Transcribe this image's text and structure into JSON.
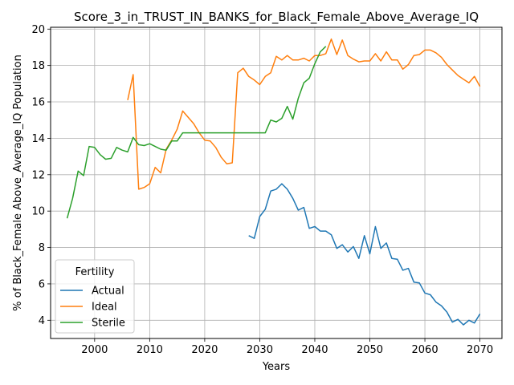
{
  "chart_data": {
    "type": "line",
    "title": "Score_3_in_TRUST_IN_BANKS_for_Black_Female_Above_Average_IQ",
    "xlabel": "Years",
    "ylabel": "% of Black_Female Above_Average_IQ Population",
    "xlim": [
      1992,
      2074
    ],
    "ylim": [
      3.0,
      20.1
    ],
    "xticks": [
      2000,
      2010,
      2020,
      2030,
      2040,
      2050,
      2060,
      2070
    ],
    "yticks": [
      4,
      6,
      8,
      10,
      12,
      14,
      16,
      18,
      20
    ],
    "grid": true,
    "legend": {
      "title": "Fertility",
      "placement": "lower-left"
    },
    "series": [
      {
        "name": "Actual",
        "color": "#1f77b4",
        "x": [
          2028,
          2029,
          2030,
          2031,
          2032,
          2033,
          2034,
          2035,
          2036,
          2037,
          2038,
          2039,
          2040,
          2041,
          2042,
          2043,
          2044,
          2045,
          2046,
          2047,
          2048,
          2049,
          2050,
          2051,
          2052,
          2053,
          2054,
          2055,
          2056,
          2057,
          2058,
          2059,
          2060,
          2061,
          2062,
          2063,
          2064,
          2065,
          2066,
          2067,
          2068,
          2069,
          2070
        ],
        "y": [
          8.65,
          8.5,
          9.7,
          10.1,
          11.1,
          11.2,
          11.5,
          11.2,
          10.7,
          10.05,
          10.2,
          9.05,
          9.15,
          8.9,
          8.9,
          8.7,
          7.95,
          8.15,
          7.75,
          8.05,
          7.4,
          8.65,
          7.65,
          9.15,
          7.95,
          8.25,
          7.4,
          7.35,
          6.75,
          6.85,
          6.1,
          6.05,
          5.5,
          5.4,
          5.0,
          4.8,
          4.45,
          3.9,
          4.05,
          3.75,
          4.0,
          3.85,
          4.35
        ]
      },
      {
        "name": "Ideal",
        "color": "#ff7f0e",
        "x": [
          2006,
          2007,
          2008,
          2009,
          2010,
          2011,
          2012,
          2013,
          2014,
          2015,
          2016,
          2017,
          2018,
          2019,
          2020,
          2021,
          2022,
          2023,
          2024,
          2025,
          2026,
          2027,
          2028,
          2029,
          2030,
          2031,
          2032,
          2033,
          2034,
          2035,
          2036,
          2037,
          2038,
          2039,
          2040,
          2041,
          2042,
          2043,
          2044,
          2045,
          2046,
          2047,
          2048,
          2049,
          2050,
          2051,
          2052,
          2053,
          2054,
          2055,
          2056,
          2057,
          2058,
          2059,
          2060,
          2061,
          2062,
          2063,
          2064,
          2065,
          2066,
          2067,
          2068,
          2069,
          2070
        ],
        "y": [
          16.1,
          17.5,
          11.2,
          11.3,
          11.5,
          12.4,
          12.1,
          13.4,
          13.9,
          14.5,
          15.5,
          15.15,
          14.8,
          14.3,
          13.9,
          13.85,
          13.5,
          12.95,
          12.6,
          12.65,
          17.6,
          17.85,
          17.4,
          17.2,
          16.95,
          17.4,
          17.6,
          18.5,
          18.3,
          18.55,
          18.3,
          18.3,
          18.4,
          18.25,
          18.55,
          18.55,
          18.65,
          19.45,
          18.6,
          19.4,
          18.55,
          18.35,
          18.2,
          18.25,
          18.25,
          18.65,
          18.25,
          18.75,
          18.3,
          18.3,
          17.8,
          18.05,
          18.55,
          18.6,
          18.85,
          18.85,
          18.7,
          18.45,
          18.05,
          17.75,
          17.45,
          17.25,
          17.05,
          17.4,
          16.85
        ]
      },
      {
        "name": "Sterile",
        "color": "#2ca02c",
        "x": [
          1995,
          1996,
          1997,
          1998,
          1999,
          2000,
          2001,
          2002,
          2003,
          2004,
          2005,
          2006,
          2007,
          2008,
          2009,
          2010,
          2011,
          2012,
          2013,
          2014,
          2015,
          2016,
          2017,
          2018,
          2019,
          2020,
          2021,
          2022,
          2023,
          2024,
          2025,
          2026,
          2027,
          2028,
          2029,
          2030,
          2031,
          2032,
          2033,
          2034,
          2035,
          2036,
          2037,
          2038,
          2039,
          2040,
          2041,
          2042
        ],
        "y": [
          9.6,
          10.7,
          12.2,
          11.95,
          13.55,
          13.5,
          13.1,
          12.85,
          12.9,
          13.5,
          13.35,
          13.25,
          14.05,
          13.65,
          13.6,
          13.7,
          13.55,
          13.4,
          13.35,
          13.85,
          13.85,
          14.3,
          14.3,
          14.3,
          14.3,
          14.3,
          14.3,
          14.3,
          14.3,
          14.3,
          14.3,
          14.3,
          14.3,
          14.3,
          14.3,
          14.3,
          14.3,
          15.0,
          14.9,
          15.1,
          15.75,
          15.05,
          16.2,
          17.05,
          17.3,
          18.1,
          18.75,
          19.05
        ]
      }
    ]
  }
}
